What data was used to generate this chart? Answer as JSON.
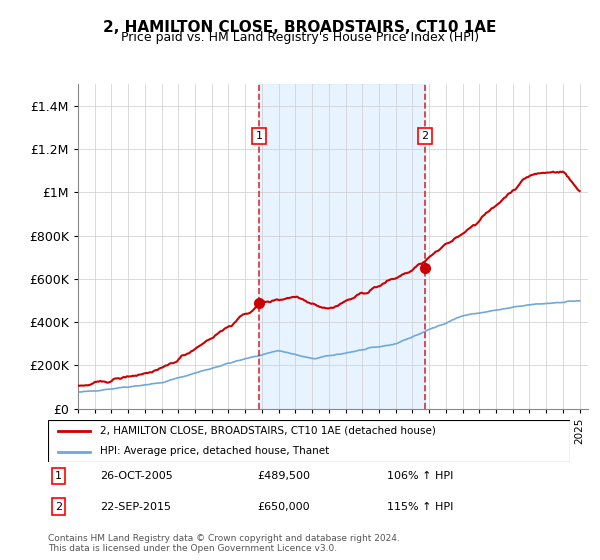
{
  "title": "2, HAMILTON CLOSE, BROADSTAIRS, CT10 1AE",
  "subtitle": "Price paid vs. HM Land Registry's House Price Index (HPI)",
  "ylim": [
    0,
    1500000
  ],
  "yticks": [
    0,
    200000,
    400000,
    600000,
    800000,
    1000000,
    1200000,
    1400000
  ],
  "ytick_labels": [
    "£0",
    "£200K",
    "£400K",
    "£600K",
    "£800K",
    "£1M",
    "£1.2M",
    "£1.4M"
  ],
  "x_start_year": 1995,
  "x_end_year": 2025,
  "sale1_date": 2005.82,
  "sale1_price": 489500,
  "sale1_label": "1",
  "sale1_date_str": "26-OCT-2005",
  "sale1_price_str": "£489,500",
  "sale1_hpi": "106% ↑ HPI",
  "sale2_date": 2015.73,
  "sale2_price": 650000,
  "sale2_label": "2",
  "sale2_date_str": "22-SEP-2015",
  "sale2_price_str": "£650,000",
  "sale2_hpi": "115% ↑ HPI",
  "hpi_color": "#6fa8dc",
  "price_color": "#cc0000",
  "shaded_color": "#ddeeff",
  "legend_label_price": "2, HAMILTON CLOSE, BROADSTAIRS, CT10 1AE (detached house)",
  "legend_label_hpi": "HPI: Average price, detached house, Thanet",
  "footnote": "Contains HM Land Registry data © Crown copyright and database right 2024.\nThis data is licensed under the Open Government Licence v3.0."
}
